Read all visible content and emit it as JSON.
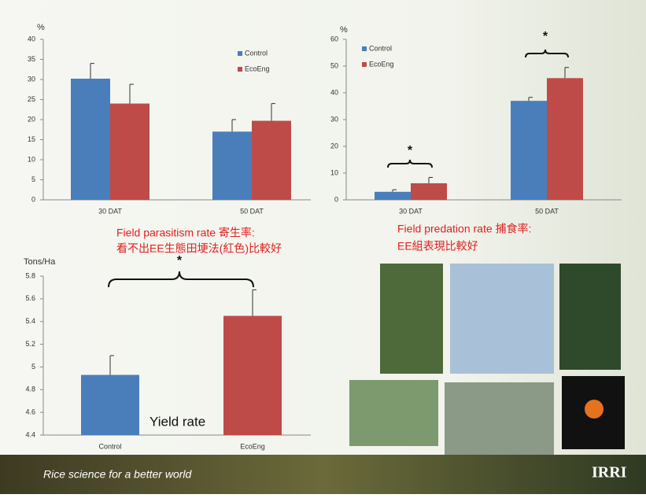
{
  "chart_data": [
    {
      "type": "bar",
      "ylabel": "%",
      "categories": [
        "30 DAT",
        "50 DAT"
      ],
      "series": [
        {
          "name": "Control",
          "color": "#4a7ebb",
          "values": [
            30.2,
            17
          ],
          "errors": [
            3.8,
            3
          ]
        },
        {
          "name": "EcoEng",
          "color": "#be4b48",
          "values": [
            24,
            19.7
          ],
          "errors": [
            4.8,
            4.3
          ]
        }
      ],
      "ylim": [
        0,
        40
      ],
      "yticks": [
        0,
        5,
        10,
        15,
        20,
        25,
        30,
        35,
        40
      ],
      "annotations": [
        "Field parasitism rate 寄生率:",
        "看不出EE生態田埂法(紅色)比較好"
      ]
    },
    {
      "type": "bar",
      "ylabel": "%",
      "categories": [
        "30 DAT",
        "50 DAT"
      ],
      "series": [
        {
          "name": "Control",
          "color": "#4a7ebb",
          "values": [
            3,
            37
          ],
          "errors": [
            0.8,
            1.3
          ]
        },
        {
          "name": "EcoEng",
          "color": "#be4b48",
          "values": [
            6.2,
            45.5
          ],
          "errors": [
            2.2,
            4
          ]
        }
      ],
      "ylim": [
        0,
        60
      ],
      "yticks": [
        0,
        10,
        20,
        30,
        40,
        50,
        60
      ],
      "annotations": [
        "*",
        "*",
        "Field predation rate 捕食率:",
        "EE組表現比較好"
      ]
    },
    {
      "type": "bar",
      "ylabel": "Tons/Ha",
      "categories": [
        "Control",
        "EcoEng"
      ],
      "values": [
        4.93,
        5.45
      ],
      "errors": [
        0.17,
        0.23
      ],
      "colors": [
        "#4a7ebb",
        "#be4b48"
      ],
      "ylim": [
        4.4,
        5.8
      ],
      "yticks": [
        4.4,
        4.6,
        4.8,
        5,
        5.2,
        5.4,
        5.6,
        5.8
      ],
      "annotations": [
        "*",
        "Yield rate"
      ]
    }
  ],
  "footer": {
    "tagline": "Rice science for a better world",
    "logo": "IRRI"
  }
}
